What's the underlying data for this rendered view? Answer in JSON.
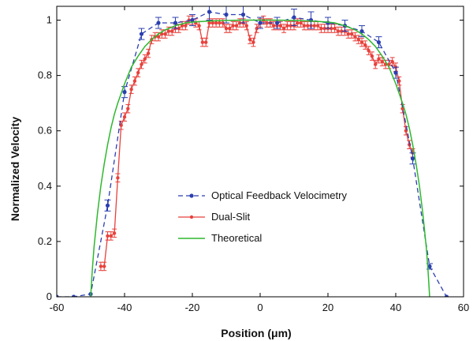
{
  "chart_data": {
    "type": "line",
    "xlabel": "Position (μm)",
    "ylabel": "Normalized Velocity",
    "xlim": [
      -60,
      60
    ],
    "ylim": [
      0,
      1.05
    ],
    "xticks": [
      -60,
      -40,
      -20,
      0,
      20,
      40,
      60
    ],
    "yticks": [
      0,
      0.2,
      0.4,
      0.6,
      0.8,
      1
    ],
    "grid": false,
    "legend_position": "center",
    "series": [
      {
        "name": "Optical Feedback Velocimetry",
        "color": "#2b3fb0",
        "style": "dashed-dots",
        "x": [
          -60,
          -55,
          -50,
          -45,
          -40,
          -35,
          -30,
          -25,
          -20,
          -15,
          -10,
          -5,
          0,
          5,
          10,
          15,
          20,
          25,
          30,
          35,
          40,
          45,
          50,
          55
        ],
        "y": [
          0,
          0,
          0.01,
          0.33,
          0.74,
          0.95,
          0.99,
          0.99,
          1.0,
          1.03,
          1.02,
          1.02,
          0.99,
          0.99,
          1.01,
          1.0,
          0.99,
          0.98,
          0.96,
          0.92,
          0.81,
          0.5,
          0.11,
          0
        ],
        "err": [
          0,
          0,
          0,
          0.02,
          0.02,
          0.02,
          0.02,
          0.02,
          0.02,
          0.03,
          0.03,
          0.03,
          0.02,
          0.02,
          0.03,
          0.03,
          0.02,
          0.02,
          0.02,
          0.02,
          0.02,
          0.02,
          0.01,
          0
        ]
      },
      {
        "name": "Dual-Slit",
        "color": "#e8413c",
        "style": "solid-dots",
        "x": [
          -47,
          -46,
          -45,
          -44,
          -43,
          -42,
          -41,
          -40,
          -39,
          -38,
          -37,
          -36,
          -35,
          -34,
          -33,
          -32,
          -31,
          -30,
          -29,
          -28,
          -27,
          -26,
          -25,
          -24,
          -23,
          -22,
          -21,
          -20,
          -19,
          -18,
          -17,
          -16,
          -15,
          -14,
          -13,
          -12,
          -11,
          -10,
          -9,
          -8,
          -7,
          -6,
          -5,
          -4,
          -3,
          -2,
          -1,
          0,
          1,
          2,
          3,
          4,
          5,
          6,
          7,
          8,
          9,
          10,
          11,
          12,
          13,
          14,
          15,
          16,
          17,
          18,
          19,
          20,
          21,
          22,
          23,
          24,
          25,
          26,
          27,
          28,
          29,
          30,
          31,
          32,
          33,
          34,
          35,
          36,
          37,
          38,
          39,
          40,
          41,
          42,
          43,
          44,
          45
        ],
        "y": [
          0.11,
          0.11,
          0.22,
          0.22,
          0.23,
          0.43,
          0.62,
          0.65,
          0.68,
          0.75,
          0.78,
          0.81,
          0.84,
          0.86,
          0.88,
          0.93,
          0.94,
          0.94,
          0.95,
          0.95,
          0.96,
          0.96,
          0.97,
          0.97,
          0.98,
          0.98,
          1.0,
          1.0,
          0.99,
          0.98,
          0.92,
          0.92,
          0.99,
          0.99,
          0.99,
          0.99,
          0.99,
          0.97,
          0.97,
          0.98,
          0.98,
          0.99,
          0.99,
          0.98,
          0.93,
          0.92,
          0.97,
          0.99,
          1.0,
          0.99,
          0.99,
          0.98,
          0.98,
          0.98,
          0.97,
          0.98,
          0.98,
          0.98,
          0.99,
          0.99,
          0.98,
          0.98,
          0.98,
          0.98,
          0.98,
          0.97,
          0.97,
          0.97,
          0.97,
          0.97,
          0.96,
          0.96,
          0.96,
          0.95,
          0.95,
          0.94,
          0.93,
          0.92,
          0.91,
          0.89,
          0.87,
          0.84,
          0.86,
          0.85,
          0.84,
          0.84,
          0.85,
          0.83,
          0.78,
          0.68,
          0.6,
          0.55,
          0.52
        ],
        "err": 0.015
      },
      {
        "name": "Theoretical",
        "color": "#2eb82e",
        "style": "solid",
        "x": [
          -50,
          -49.5,
          -49,
          -48,
          -47,
          -46,
          -45,
          -44,
          -43,
          -42,
          -40,
          -38,
          -36,
          -34,
          -32,
          -30,
          -28,
          -25,
          -22,
          -20,
          -15,
          -10,
          -5,
          0,
          5,
          10,
          15,
          20,
          22,
          25,
          28,
          30,
          32,
          34,
          36,
          38,
          40,
          42,
          43,
          44,
          45,
          46,
          47,
          48,
          49,
          49.5,
          50
        ],
        "y": [
          0,
          0.1,
          0.18,
          0.3,
          0.4,
          0.48,
          0.55,
          0.61,
          0.66,
          0.7,
          0.77,
          0.83,
          0.87,
          0.905,
          0.93,
          0.95,
          0.965,
          0.98,
          0.99,
          0.993,
          0.997,
          0.999,
          1.0,
          1.0,
          1.0,
          0.999,
          0.997,
          0.993,
          0.99,
          0.98,
          0.965,
          0.95,
          0.93,
          0.905,
          0.87,
          0.83,
          0.77,
          0.7,
          0.66,
          0.61,
          0.55,
          0.48,
          0.4,
          0.3,
          0.18,
          0.1,
          0
        ]
      }
    ]
  }
}
